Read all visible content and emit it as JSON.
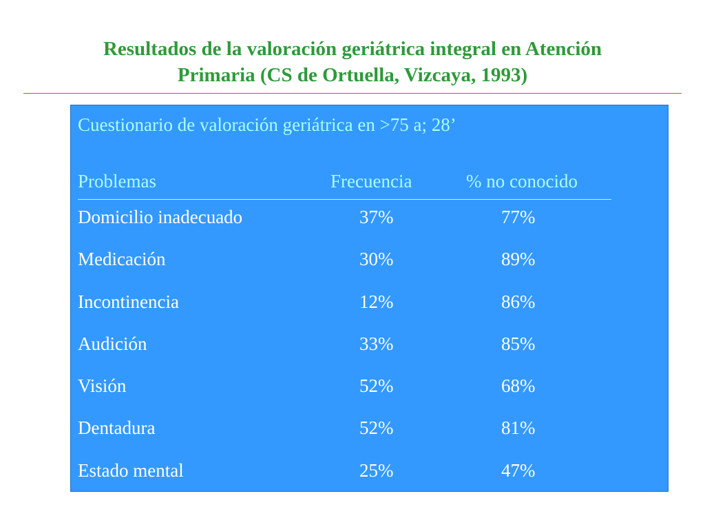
{
  "slide": {
    "title_lines": [
      "Resultados de la valoración geriátrica integral en Atención",
      "Primaria (CS de Ortuella, Vizcaya, 1993)"
    ],
    "accent_colors": {
      "title": "#2e9a3a",
      "rule": "#d04848",
      "panel": "#3399ff",
      "header_text": "#aefcff",
      "body_text": "#ffffff"
    }
  },
  "table": {
    "subtitle": "Cuestionario de valoración geriátrica en >75 a; 28’",
    "columns": [
      "Problemas",
      "Frecuencia",
      "% no conocido"
    ],
    "rows": [
      {
        "problem": "Domicilio inadecuado",
        "frequency": "37%",
        "unknown_pct": "77%"
      },
      {
        "problem": "Medicación",
        "frequency": "30%",
        "unknown_pct": "89%"
      },
      {
        "problem": "Incontinencia",
        "frequency": "12%",
        "unknown_pct": "86%"
      },
      {
        "problem": "Audición",
        "frequency": "33%",
        "unknown_pct": "85%"
      },
      {
        "problem": "Visión",
        "frequency": "52%",
        "unknown_pct": "68%"
      },
      {
        "problem": "Dentadura",
        "frequency": "52%",
        "unknown_pct": "81%"
      },
      {
        "problem": "Estado mental",
        "frequency": "25%",
        "unknown_pct": "47%"
      }
    ]
  }
}
